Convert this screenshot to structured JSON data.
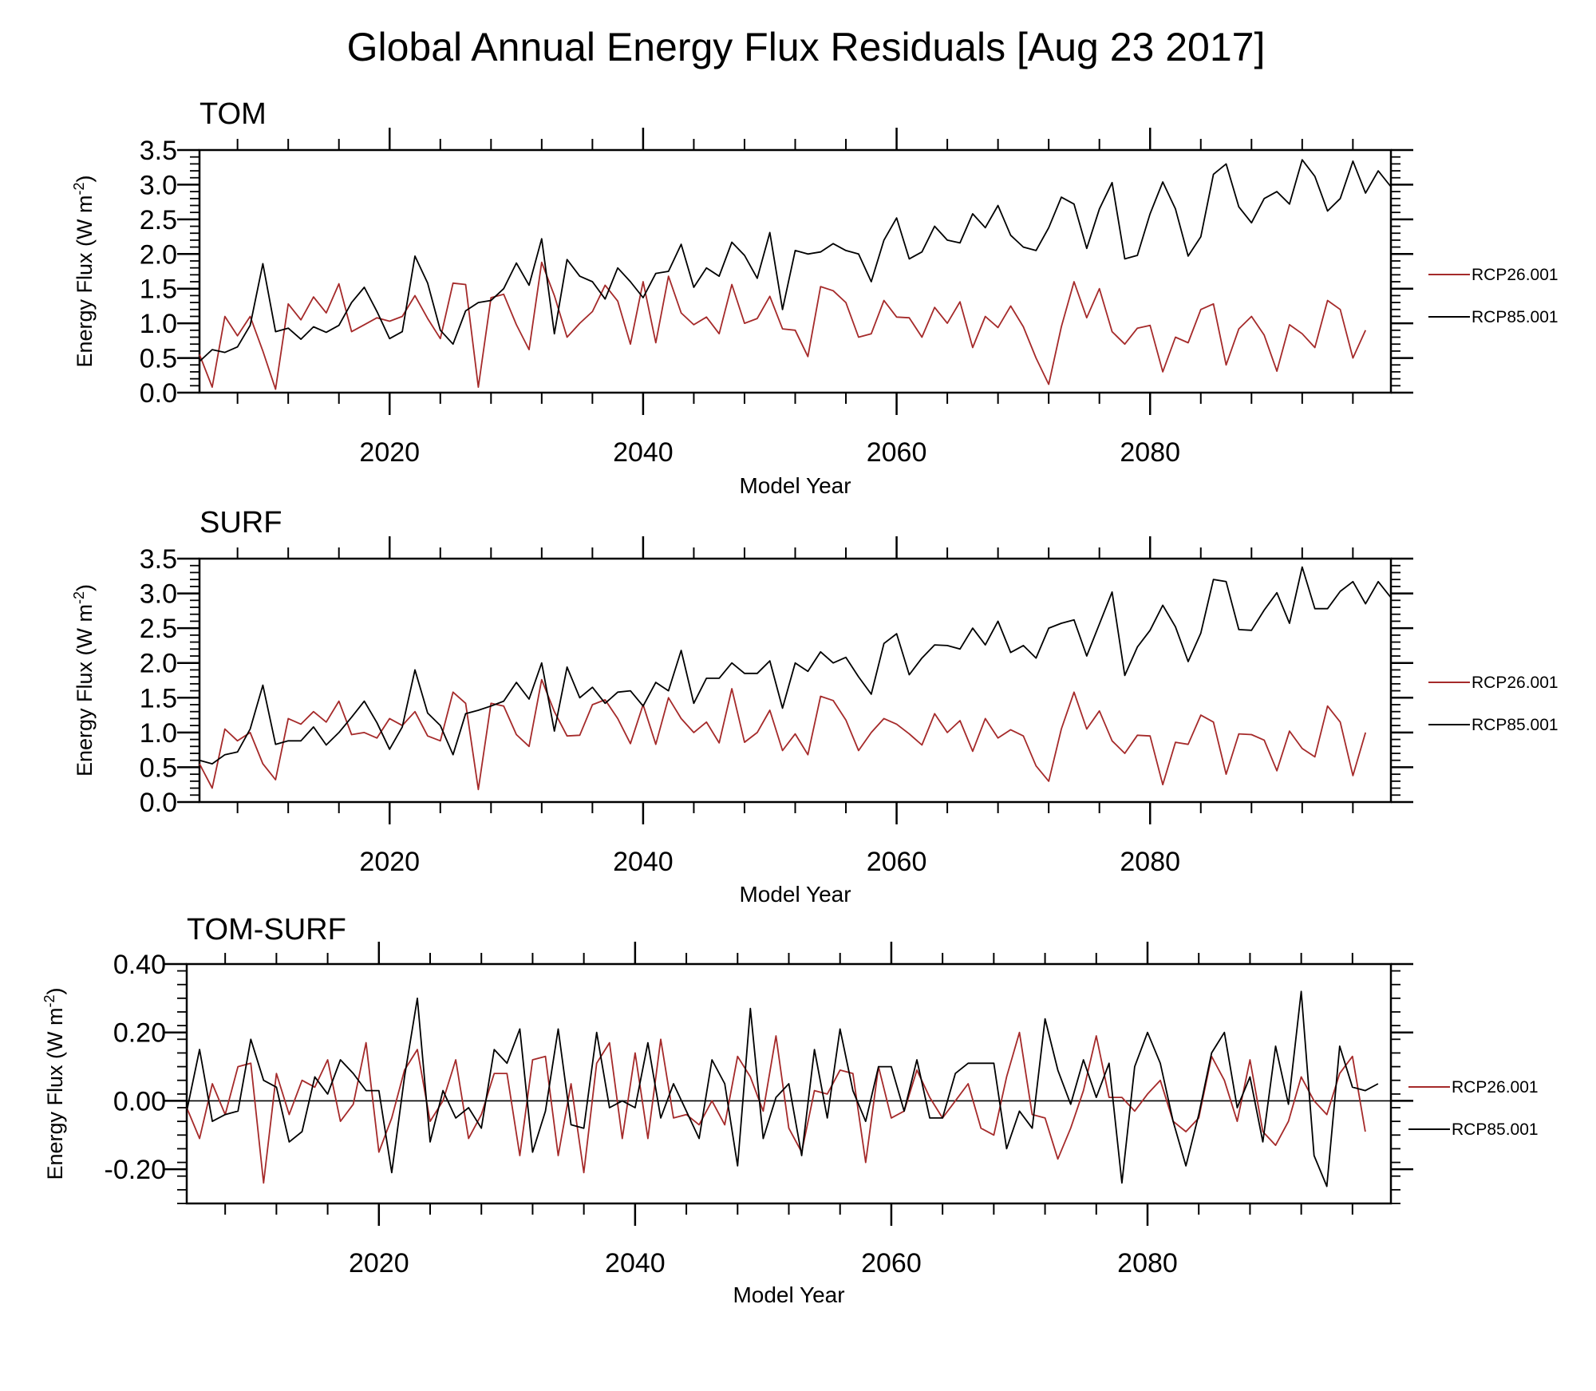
{
  "figure": {
    "title": "Global Annual Energy Flux Residuals [Aug 23 2017]"
  },
  "chart_data": [
    {
      "type": "line",
      "panel_label": "TOM",
      "xlabel": "Model Year",
      "ylabel": "Energy Flux (W m-2)",
      "ylabel_main": "Energy Flux (W m",
      "ylabel_sup": "-2",
      "ylabel_end": ")",
      "xlim": [
        2005,
        2099
      ],
      "ylim": [
        0,
        3.5
      ],
      "x_ticks": [
        2020,
        2040,
        2060,
        2080
      ],
      "x_tick_labels": [
        "2020",
        "2040",
        "2060",
        "2080"
      ],
      "y_ticks": [
        0,
        0.5,
        1,
        1.5,
        2,
        2.5,
        3,
        3.5
      ],
      "y_tick_labels": [
        "0.0",
        "0.5",
        "1.0",
        "1.5",
        "2.0",
        "2.5",
        "3.0",
        "3.5"
      ],
      "zero_line": false,
      "legend_placement": "right",
      "x_start": 2005,
      "series": [
        {
          "name": "RCP26.001",
          "color": "#a52a2a",
          "values": [
            0.55,
            0.08,
            1.1,
            0.82,
            1.1,
            0.6,
            0.05,
            1.28,
            1.05,
            1.38,
            1.15,
            1.57,
            0.88,
            0.98,
            1.08,
            1.03,
            1.1,
            1.4,
            1.07,
            0.78,
            1.58,
            1.56,
            0.08,
            1.37,
            1.42,
            0.98,
            0.62,
            1.88,
            1.4,
            0.8,
            1.0,
            1.17,
            1.55,
            1.32,
            0.7,
            1.6,
            0.72,
            1.68,
            1.15,
            0.98,
            1.09,
            0.85,
            1.56,
            1.0,
            1.07,
            1.39,
            0.92,
            0.9,
            0.52,
            1.53,
            1.47,
            1.3,
            0.8,
            0.85,
            1.33,
            1.09,
            1.08,
            0.8,
            1.23,
            1.0,
            1.31,
            0.65,
            1.1,
            0.94,
            1.25,
            0.95,
            0.5,
            0.12,
            0.95,
            1.6,
            1.08,
            1.5,
            0.88,
            0.7,
            0.93,
            0.97,
            0.3,
            0.8,
            0.72,
            1.2,
            1.28,
            0.4,
            0.92,
            1.1,
            0.83,
            0.31,
            0.98,
            0.85,
            0.65,
            1.33,
            1.2,
            0.5,
            0.9
          ]
        },
        {
          "name": "RCP85.001",
          "color": "#000000",
          "values": [
            0.45,
            0.62,
            0.58,
            0.66,
            0.97,
            1.86,
            0.88,
            0.93,
            0.77,
            0.95,
            0.87,
            0.97,
            1.3,
            1.52,
            1.17,
            0.78,
            0.88,
            1.97,
            1.58,
            0.9,
            0.7,
            1.18,
            1.3,
            1.33,
            1.5,
            1.87,
            1.55,
            2.22,
            0.85,
            1.92,
            1.68,
            1.6,
            1.35,
            1.8,
            1.6,
            1.37,
            1.72,
            1.75,
            2.14,
            1.52,
            1.8,
            1.68,
            2.17,
            1.98,
            1.65,
            2.31,
            1.2,
            2.05,
            2.0,
            2.03,
            2.15,
            2.05,
            2.0,
            1.6,
            2.2,
            2.52,
            1.93,
            2.03,
            2.4,
            2.2,
            2.16,
            2.58,
            2.38,
            2.7,
            2.27,
            2.1,
            2.05,
            2.38,
            2.82,
            2.72,
            2.08,
            2.65,
            3.03,
            1.93,
            1.98,
            2.58,
            3.04,
            2.65,
            1.97,
            2.25,
            3.15,
            3.3,
            2.68,
            2.45,
            2.8,
            2.9,
            2.72,
            3.36,
            3.12,
            2.62,
            2.8,
            3.34,
            2.88,
            3.2,
            2.97
          ]
        }
      ]
    },
    {
      "type": "line",
      "panel_label": "SURF",
      "xlabel": "Model Year",
      "ylabel": "Energy Flux (W m-2)",
      "ylabel_main": "Energy Flux (W m",
      "ylabel_sup": "-2",
      "ylabel_end": ")",
      "xlim": [
        2005,
        2099
      ],
      "ylim": [
        0,
        3.5
      ],
      "x_ticks": [
        2020,
        2040,
        2060,
        2080
      ],
      "x_tick_labels": [
        "2020",
        "2040",
        "2060",
        "2080"
      ],
      "y_ticks": [
        0,
        0.5,
        1,
        1.5,
        2,
        2.5,
        3,
        3.5
      ],
      "y_tick_labels": [
        "0.0",
        "0.5",
        "1.0",
        "1.5",
        "2.0",
        "2.5",
        "3.0",
        "3.5"
      ],
      "zero_line": false,
      "legend_placement": "right",
      "x_start": 2005,
      "series": [
        {
          "name": "RCP26.001",
          "color": "#a52a2a",
          "values": [
            0.55,
            0.2,
            1.05,
            0.88,
            1.0,
            0.55,
            0.32,
            1.2,
            1.12,
            1.3,
            1.15,
            1.45,
            0.97,
            1.0,
            0.92,
            1.2,
            1.1,
            1.3,
            0.95,
            0.88,
            1.58,
            1.42,
            0.18,
            1.42,
            1.38,
            0.97,
            0.8,
            1.76,
            1.3,
            0.95,
            0.96,
            1.4,
            1.47,
            1.2,
            0.84,
            1.4,
            0.83,
            1.5,
            1.2,
            1.0,
            1.15,
            0.85,
            1.63,
            0.86,
            1.0,
            1.32,
            0.74,
            0.98,
            0.68,
            1.52,
            1.46,
            1.18,
            0.74,
            1.0,
            1.2,
            1.12,
            0.98,
            0.82,
            1.27,
            1.0,
            1.17,
            0.73,
            1.2,
            0.92,
            1.04,
            0.95,
            0.52,
            0.3,
            1.05,
            1.58,
            1.05,
            1.31,
            0.88,
            0.7,
            0.96,
            0.95,
            0.25,
            0.86,
            0.83,
            1.25,
            1.15,
            0.4,
            0.98,
            0.97,
            0.89,
            0.45,
            1.02,
            0.77,
            0.65,
            1.38,
            1.15,
            0.38,
            1.0
          ]
        },
        {
          "name": "RCP85.001",
          "color": "#000000",
          "values": [
            0.6,
            0.55,
            0.68,
            0.72,
            1.05,
            1.68,
            0.83,
            0.88,
            0.88,
            1.08,
            0.82,
            1.0,
            1.22,
            1.45,
            1.14,
            0.76,
            1.08,
            1.9,
            1.28,
            1.1,
            0.68,
            1.27,
            1.32,
            1.38,
            1.45,
            1.72,
            1.48,
            2.0,
            1.02,
            1.94,
            1.5,
            1.65,
            1.42,
            1.58,
            1.6,
            1.38,
            1.72,
            1.6,
            2.18,
            1.42,
            1.78,
            1.78,
            2.0,
            1.85,
            1.85,
            2.03,
            1.35,
            2.0,
            1.88,
            2.16,
            2.0,
            2.08,
            1.8,
            1.55,
            2.28,
            2.42,
            1.83,
            2.07,
            2.26,
            2.25,
            2.2,
            2.5,
            2.26,
            2.6,
            2.15,
            2.25,
            2.07,
            2.5,
            2.57,
            2.62,
            2.1,
            2.56,
            3.02,
            1.82,
            2.23,
            2.47,
            2.83,
            2.52,
            2.02,
            2.43,
            3.2,
            3.17,
            2.48,
            2.47,
            2.76,
            3.01,
            2.57,
            3.38,
            2.78,
            2.78,
            3.03,
            3.17,
            2.85,
            3.17,
            2.94
          ]
        }
      ]
    },
    {
      "type": "line",
      "panel_label": "TOM-SURF",
      "xlabel": "Model Year",
      "ylabel": "Energy Flux (W m-2)",
      "ylabel_main": "Energy Flux (W m",
      "ylabel_sup": "-2",
      "ylabel_end": ")",
      "xlim": [
        2005,
        2099
      ],
      "ylim": [
        -0.3,
        0.4
      ],
      "x_ticks": [
        2020,
        2040,
        2060,
        2080
      ],
      "x_tick_labels": [
        "2020",
        "2040",
        "2060",
        "2080"
      ],
      "y_ticks": [
        -0.2,
        0,
        0.2,
        0.4
      ],
      "y_tick_labels": [
        "-0.20",
        "0.00",
        "0.20",
        "0.40"
      ],
      "zero_line": true,
      "legend_placement": "right",
      "x_start": 2005,
      "series": [
        {
          "name": "RCP26.001",
          "color": "#a52a2a",
          "values": [
            -0.02,
            -0.11,
            0.05,
            -0.04,
            0.1,
            0.11,
            -0.24,
            0.08,
            -0.04,
            0.06,
            0.04,
            0.12,
            -0.06,
            -0.01,
            0.17,
            -0.15,
            -0.05,
            0.09,
            0.15,
            -0.06,
            0.0,
            0.12,
            -0.11,
            -0.04,
            0.08,
            0.08,
            -0.16,
            0.12,
            0.13,
            -0.16,
            0.05,
            -0.21,
            0.11,
            0.17,
            -0.11,
            0.14,
            -0.11,
            0.18,
            -0.05,
            -0.04,
            -0.07,
            0.0,
            -0.07,
            0.13,
            0.07,
            -0.03,
            0.19,
            -0.08,
            -0.15,
            0.03,
            0.02,
            0.09,
            0.08,
            -0.18,
            0.1,
            -0.05,
            -0.03,
            0.09,
            0.01,
            -0.05,
            0.0,
            0.05,
            -0.08,
            -0.1,
            0.07,
            0.2,
            -0.04,
            -0.05,
            -0.17,
            -0.08,
            0.03,
            0.19,
            0.01,
            0.01,
            -0.03,
            0.02,
            0.06,
            -0.06,
            -0.09,
            -0.05,
            0.13,
            0.06,
            -0.06,
            0.12,
            -0.09,
            -0.13,
            -0.06,
            0.07,
            0.0,
            -0.04,
            0.08,
            0.13,
            -0.09
          ]
        },
        {
          "name": "RCP85.001",
          "color": "#000000",
          "values": [
            -0.03,
            0.15,
            -0.06,
            -0.04,
            -0.03,
            0.18,
            0.06,
            0.04,
            -0.12,
            -0.09,
            0.07,
            0.02,
            0.12,
            0.08,
            0.03,
            0.03,
            -0.21,
            0.07,
            0.3,
            -0.12,
            0.03,
            -0.05,
            -0.02,
            -0.08,
            0.15,
            0.11,
            0.21,
            -0.15,
            -0.03,
            0.21,
            -0.07,
            -0.08,
            0.2,
            -0.02,
            0.0,
            -0.02,
            0.17,
            -0.05,
            0.05,
            -0.03,
            -0.11,
            0.12,
            0.05,
            -0.19,
            0.27,
            -0.11,
            0.01,
            0.05,
            -0.16,
            0.15,
            -0.05,
            0.21,
            0.03,
            -0.06,
            0.1,
            0.1,
            -0.03,
            0.12,
            -0.05,
            -0.05,
            0.08,
            0.11,
            0.11,
            0.11,
            -0.14,
            -0.03,
            -0.08,
            0.24,
            0.09,
            -0.01,
            0.12,
            0.01,
            0.11,
            -0.24,
            0.1,
            0.2,
            0.11,
            -0.06,
            -0.19,
            -0.04,
            0.14,
            0.2,
            -0.02,
            0.07,
            -0.12,
            0.16,
            -0.01,
            0.32,
            -0.16,
            -0.25,
            0.16,
            0.04,
            0.03,
            0.05
          ]
        }
      ]
    }
  ]
}
